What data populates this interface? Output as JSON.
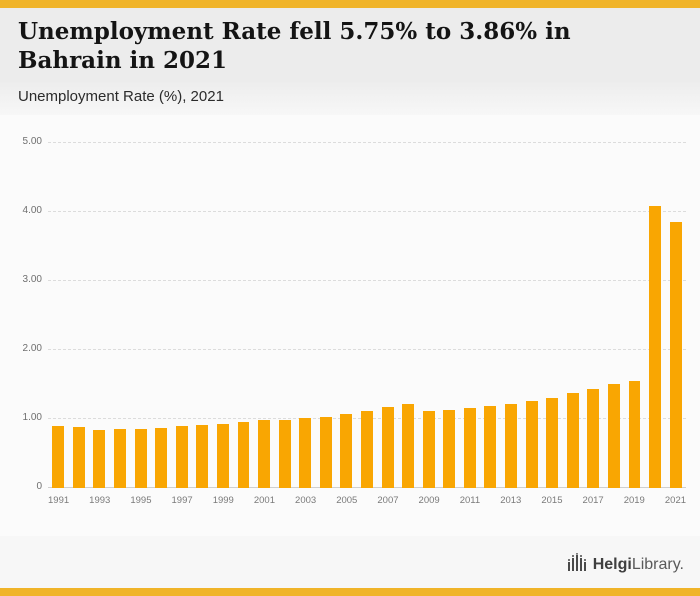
{
  "colors": {
    "accent": "#F0B429",
    "bar": "#F9A602"
  },
  "header": {
    "title": "Unemployment Rate fell 5.75% to 3.86% in Bahrain in 2021",
    "subtitle": "Unemployment Rate (%), 2021"
  },
  "footer": {
    "brand_bold": "Helgi",
    "brand_light": "Library",
    "brand_suffix": "."
  },
  "chart_data": {
    "type": "bar",
    "title": "Unemployment Rate fell 5.75% to 3.86% in Bahrain in 2021",
    "subtitle": "Unemployment Rate (%), 2021",
    "xlabel": "",
    "ylabel": "Unemployment Rate (%)",
    "ylim": [
      0,
      5
    ],
    "grid": "dashed horizontal",
    "legend": "none",
    "yticks": [
      "0",
      "1.00",
      "2.00",
      "3.00",
      "4.00",
      "5.00"
    ],
    "x_tick_labels": [
      "1991",
      "1993",
      "1995",
      "1997",
      "1999",
      "2001",
      "2003",
      "2005",
      "2007",
      "2009",
      "2011",
      "2013",
      "2015",
      "2017",
      "2019",
      "2021"
    ],
    "categories": [
      1991,
      1992,
      1993,
      1994,
      1995,
      1996,
      1997,
      1998,
      1999,
      2000,
      2001,
      2002,
      2003,
      2004,
      2005,
      2006,
      2007,
      2008,
      2009,
      2010,
      2011,
      2012,
      2013,
      2014,
      2015,
      2016,
      2017,
      2018,
      2019,
      2020,
      2021
    ],
    "values": [
      0.9,
      0.88,
      0.84,
      0.85,
      0.86,
      0.87,
      0.9,
      0.91,
      0.93,
      0.95,
      0.98,
      0.99,
      1.01,
      1.03,
      1.07,
      1.12,
      1.17,
      1.21,
      1.12,
      1.13,
      1.16,
      1.19,
      1.22,
      1.26,
      1.31,
      1.38,
      1.43,
      1.5,
      1.55,
      4.09,
      3.86
    ]
  }
}
